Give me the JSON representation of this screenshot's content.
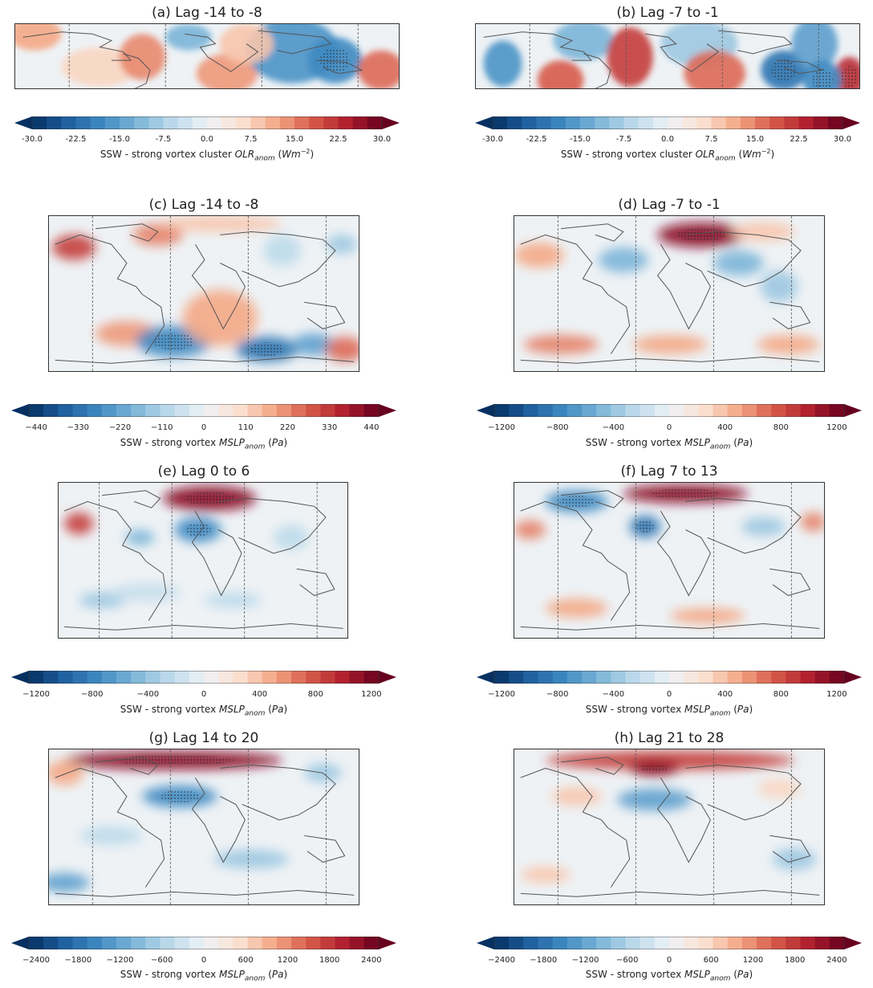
{
  "panels": [
    {
      "title": "(a) Lag -14 to -8",
      "field": "olr",
      "hotspots": [
        "olr_a"
      ]
    },
    {
      "title": "(b) Lag -7 to -1",
      "field": "olr",
      "hotspots": [
        "olr_b"
      ]
    },
    {
      "title": "(c) Lag -14 to -8",
      "field": "mslp"
    },
    {
      "title": "(d) Lag -7 to -1",
      "field": "mslp"
    },
    {
      "title": "(e) Lag 0 to 6",
      "field": "mslp"
    },
    {
      "title": "(f) Lag 7 to 13",
      "field": "mslp"
    },
    {
      "title": "(g) Lag 14 to 20",
      "field": "mslp"
    },
    {
      "title": "(h) Lag 21 to 28",
      "field": "mslp"
    }
  ],
  "colorbars": [
    {
      "ticks": [
        "-30.0",
        "-22.5",
        "-15.0",
        "-7.5",
        "0.0",
        "7.5",
        "15.0",
        "22.5",
        "30.0"
      ],
      "label_prefix": "SSW - strong vortex cluster ",
      "label_var": "OLR",
      "label_sub": "anom",
      "label_unit_open": " (",
      "label_unit": "Wm",
      "label_sup": "−2",
      "label_unit_close": ")"
    },
    {
      "ticks": [
        "-30.0",
        "-22.5",
        "-15.0",
        "-7.5",
        "0.0",
        "7.5",
        "15.0",
        "22.5",
        "30.0"
      ],
      "label_prefix": "SSW - strong vortex cluster ",
      "label_var": "OLR",
      "label_sub": "anom",
      "label_unit_open": " (",
      "label_unit": "Wm",
      "label_sup": "−2",
      "label_unit_close": ")"
    },
    {
      "ticks": [
        "−440",
        "−330",
        "−220",
        "−110",
        "0",
        "110",
        "220",
        "330",
        "440"
      ],
      "label_prefix": "SSW - strong vortex ",
      "label_var": "MSLP",
      "label_sub": "anom",
      "label_unit_open": " (",
      "label_unit": "Pa",
      "label_sup": "",
      "label_unit_close": ")"
    },
    {
      "ticks": [
        "−1200",
        "−800",
        "−400",
        "0",
        "400",
        "800",
        "1200"
      ],
      "label_prefix": "SSW - strong vortex ",
      "label_var": "MSLP",
      "label_sub": "anom",
      "label_unit_open": " (",
      "label_unit": "Pa",
      "label_sup": "",
      "label_unit_close": ")"
    },
    {
      "ticks": [
        "−1200",
        "−800",
        "−400",
        "0",
        "400",
        "800",
        "1200"
      ],
      "label_prefix": "SSW - strong vortex ",
      "label_var": "MSLP",
      "label_sub": "anom",
      "label_unit_open": " (",
      "label_unit": "Pa",
      "label_sup": "",
      "label_unit_close": ")"
    },
    {
      "ticks": [
        "−1200",
        "−800",
        "−400",
        "0",
        "400",
        "800",
        "1200"
      ],
      "label_prefix": "SSW - strong vortex ",
      "label_var": "MSLP",
      "label_sub": "anom",
      "label_unit_open": " (",
      "label_unit": "Pa",
      "label_sup": "",
      "label_unit_close": ")"
    },
    {
      "ticks": [
        "−2400",
        "−1800",
        "−1200",
        "−600",
        "0",
        "600",
        "1200",
        "1800",
        "2400"
      ],
      "label_prefix": "SSW - strong vortex ",
      "label_var": "MSLP",
      "label_sub": "anom",
      "label_unit_open": " (",
      "label_unit": "Pa",
      "label_sup": "",
      "label_unit_close": ")"
    },
    {
      "ticks": [
        "−2400",
        "−1800",
        "−1200",
        "−600",
        "0",
        "600",
        "1200",
        "1800",
        "2400"
      ],
      "label_prefix": "SSW - strong vortex ",
      "label_var": "MSLP",
      "label_sub": "anom",
      "label_unit_open": " (",
      "label_unit": "Pa",
      "label_sup": "",
      "label_unit_close": ")"
    }
  ],
  "colors": {
    "ramp": [
      "#053061",
      "#1f5f9f",
      "#3f8ac2",
      "#7cb5d8",
      "#bcdaea",
      "#edf2f6",
      "#fbe1d1",
      "#f4a886",
      "#d75b4a",
      "#b01f2e",
      "#67001f"
    ],
    "coast": "#555555",
    "divider": "#555555"
  }
}
